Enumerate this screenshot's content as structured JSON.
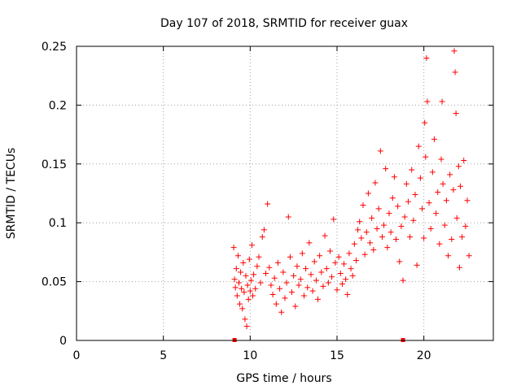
{
  "chart_data": {
    "type": "scatter",
    "title": "Day 107 of 2018, SRMTID for receiver guax",
    "xlabel": "GPS time / hours",
    "ylabel": "SRMTID / TECUs",
    "xlim": [
      0,
      24
    ],
    "ylim": [
      0,
      0.25
    ],
    "x_ticks": [
      0,
      5,
      10,
      15,
      20
    ],
    "x_tick_labels": [
      "0",
      "5",
      "10",
      "15",
      "20"
    ],
    "y_ticks": [
      0,
      0.05,
      0.1,
      0.15,
      0.2,
      0.25
    ],
    "y_tick_labels": [
      "0",
      "0.05",
      "0.1",
      "0.15",
      "0.2",
      "0.25"
    ],
    "grid": true,
    "marker": "+",
    "color": "#ff0000",
    "markers_on_axis": [
      9.1,
      18.8
    ],
    "series": [
      {
        "name": "SRMTID",
        "points": [
          [
            9.05,
            0.079
          ],
          [
            9.1,
            0.052
          ],
          [
            9.15,
            0.045
          ],
          [
            9.2,
            0.061
          ],
          [
            9.25,
            0.038
          ],
          [
            9.3,
            0.072
          ],
          [
            9.35,
            0.049
          ],
          [
            9.4,
            0.031
          ],
          [
            9.45,
            0.058
          ],
          [
            9.5,
            0.044
          ],
          [
            9.55,
            0.027
          ],
          [
            9.6,
            0.066
          ],
          [
            9.65,
            0.041
          ],
          [
            9.7,
            0.018
          ],
          [
            9.75,
            0.055
          ],
          [
            9.8,
            0.012
          ],
          [
            9.85,
            0.047
          ],
          [
            9.9,
            0.035
          ],
          [
            9.95,
            0.069
          ],
          [
            10.0,
            0.042
          ],
          [
            10.05,
            0.051
          ],
          [
            10.1,
            0.081
          ],
          [
            10.15,
            0.038
          ],
          [
            10.2,
            0.056
          ],
          [
            10.3,
            0.044
          ],
          [
            10.4,
            0.063
          ],
          [
            10.5,
            0.071
          ],
          [
            10.6,
            0.049
          ],
          [
            10.7,
            0.088
          ],
          [
            10.8,
            0.094
          ],
          [
            10.9,
            0.057
          ],
          [
            11.0,
            0.116
          ],
          [
            11.1,
            0.062
          ],
          [
            11.2,
            0.047
          ],
          [
            11.3,
            0.039
          ],
          [
            11.4,
            0.053
          ],
          [
            11.5,
            0.031
          ],
          [
            11.6,
            0.066
          ],
          [
            11.7,
            0.044
          ],
          [
            11.8,
            0.024
          ],
          [
            11.9,
            0.058
          ],
          [
            12.0,
            0.036
          ],
          [
            12.1,
            0.049
          ],
          [
            12.2,
            0.105
          ],
          [
            12.3,
            0.071
          ],
          [
            12.4,
            0.041
          ],
          [
            12.5,
            0.055
          ],
          [
            12.6,
            0.029
          ],
          [
            12.7,
            0.063
          ],
          [
            12.8,
            0.047
          ],
          [
            12.9,
            0.052
          ],
          [
            13.0,
            0.074
          ],
          [
            13.1,
            0.038
          ],
          [
            13.2,
            0.061
          ],
          [
            13.3,
            0.045
          ],
          [
            13.4,
            0.083
          ],
          [
            13.5,
            0.056
          ],
          [
            13.6,
            0.042
          ],
          [
            13.7,
            0.067
          ],
          [
            13.8,
            0.051
          ],
          [
            13.9,
            0.035
          ],
          [
            14.0,
            0.072
          ],
          [
            14.1,
            0.058
          ],
          [
            14.2,
            0.046
          ],
          [
            14.3,
            0.089
          ],
          [
            14.4,
            0.061
          ],
          [
            14.5,
            0.049
          ],
          [
            14.6,
            0.076
          ],
          [
            14.7,
            0.054
          ],
          [
            14.8,
            0.103
          ],
          [
            14.9,
            0.066
          ],
          [
            15.0,
            0.043
          ],
          [
            15.1,
            0.071
          ],
          [
            15.2,
            0.057
          ],
          [
            15.3,
            0.048
          ],
          [
            15.4,
            0.065
          ],
          [
            15.5,
            0.052
          ],
          [
            15.6,
            0.039
          ],
          [
            15.7,
            0.074
          ],
          [
            15.8,
            0.061
          ],
          [
            15.9,
            0.055
          ],
          [
            16.0,
            0.082
          ],
          [
            16.1,
            0.068
          ],
          [
            16.2,
            0.094
          ],
          [
            16.3,
            0.101
          ],
          [
            16.4,
            0.087
          ],
          [
            16.5,
            0.115
          ],
          [
            16.6,
            0.073
          ],
          [
            16.7,
            0.092
          ],
          [
            16.8,
            0.125
          ],
          [
            16.9,
            0.083
          ],
          [
            17.0,
            0.104
          ],
          [
            17.1,
            0.077
          ],
          [
            17.2,
            0.134
          ],
          [
            17.3,
            0.095
          ],
          [
            17.4,
            0.112
          ],
          [
            17.5,
            0.161
          ],
          [
            17.6,
            0.088
          ],
          [
            17.7,
            0.098
          ],
          [
            17.8,
            0.146
          ],
          [
            17.9,
            0.079
          ],
          [
            18.0,
            0.108
          ],
          [
            18.1,
            0.092
          ],
          [
            18.2,
            0.121
          ],
          [
            18.3,
            0.139
          ],
          [
            18.4,
            0.086
          ],
          [
            18.5,
            0.114
          ],
          [
            18.6,
            0.067
          ],
          [
            18.7,
            0.097
          ],
          [
            18.8,
            0.051
          ],
          [
            18.9,
            0.105
          ],
          [
            19.0,
            0.133
          ],
          [
            19.1,
            0.118
          ],
          [
            19.2,
            0.088
          ],
          [
            19.3,
            0.145
          ],
          [
            19.4,
            0.102
          ],
          [
            19.5,
            0.124
          ],
          [
            19.6,
            0.064
          ],
          [
            19.7,
            0.165
          ],
          [
            19.8,
            0.138
          ],
          [
            19.9,
            0.112
          ],
          [
            20.0,
            0.087
          ],
          [
            20.05,
            0.185
          ],
          [
            20.1,
            0.156
          ],
          [
            20.15,
            0.24
          ],
          [
            20.2,
            0.203
          ],
          [
            20.3,
            0.117
          ],
          [
            20.4,
            0.095
          ],
          [
            20.5,
            0.143
          ],
          [
            20.6,
            0.171
          ],
          [
            20.7,
            0.108
          ],
          [
            20.8,
            0.126
          ],
          [
            20.9,
            0.082
          ],
          [
            21.0,
            0.154
          ],
          [
            21.05,
            0.203
          ],
          [
            21.1,
            0.133
          ],
          [
            21.2,
            0.098
          ],
          [
            21.3,
            0.119
          ],
          [
            21.4,
            0.072
          ],
          [
            21.5,
            0.141
          ],
          [
            21.6,
            0.086
          ],
          [
            21.7,
            0.128
          ],
          [
            21.75,
            0.246
          ],
          [
            21.8,
            0.228
          ],
          [
            21.85,
            0.193
          ],
          [
            21.9,
            0.104
          ],
          [
            22.0,
            0.148
          ],
          [
            22.05,
            0.062
          ],
          [
            22.1,
            0.131
          ],
          [
            22.2,
            0.088
          ],
          [
            22.3,
            0.153
          ],
          [
            22.4,
            0.097
          ],
          [
            22.5,
            0.119
          ],
          [
            22.6,
            0.072
          ]
        ]
      }
    ]
  }
}
